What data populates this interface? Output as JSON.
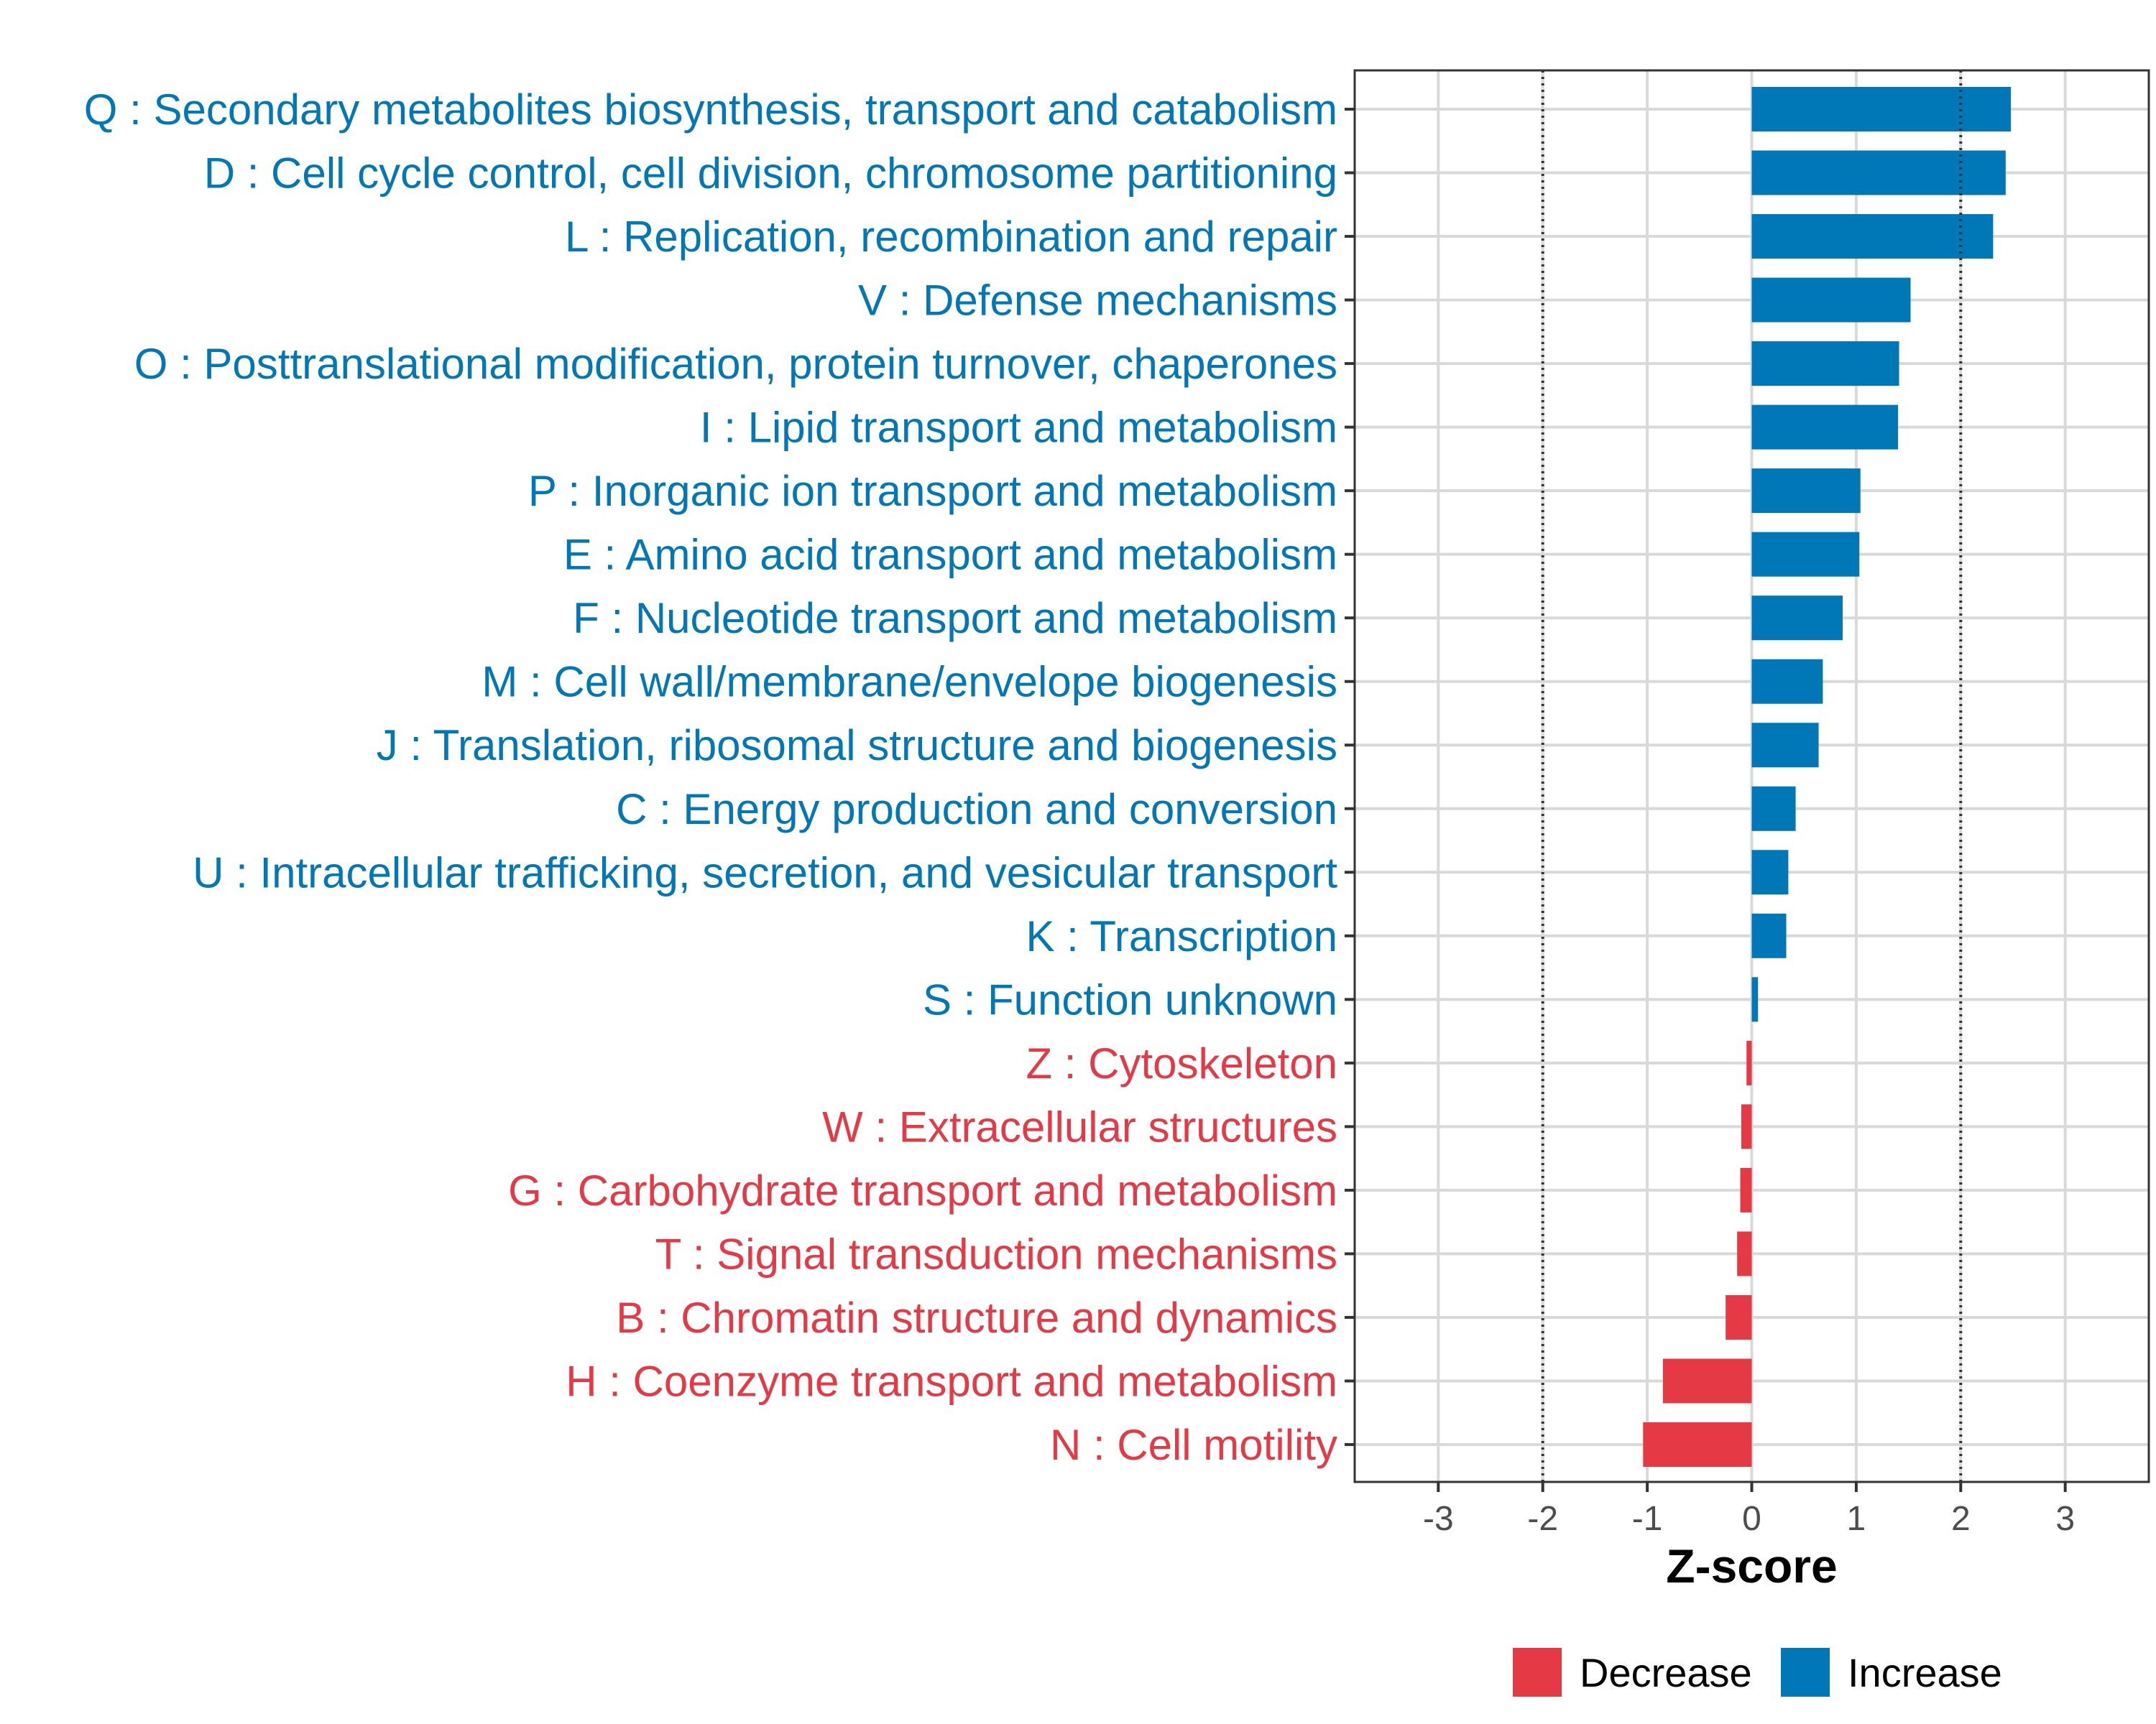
{
  "chart_data": {
    "type": "bar",
    "orientation": "horizontal",
    "title": "",
    "xlabel": "Z-score",
    "ylabel": "",
    "xlim": [
      -3.8,
      3.8
    ],
    "xticks": [
      -3,
      -2,
      -1,
      0,
      1,
      2,
      3
    ],
    "threshold_lines": [
      -2,
      2
    ],
    "grid": true,
    "legend_position": "bottom",
    "legend": [
      {
        "label": "Decrease",
        "color": "#E63946"
      },
      {
        "label": "Increase",
        "color": "#0077B6"
      }
    ],
    "categories": [
      {
        "label": "Q : Secondary metabolites biosynthesis, transport and catabolism",
        "value": 2.48,
        "group": "Increase"
      },
      {
        "label": "D : Cell cycle control, cell division, chromosome partitioning",
        "value": 2.43,
        "group": "Increase"
      },
      {
        "label": "L : Replication, recombination and repair",
        "value": 2.31,
        "group": "Increase"
      },
      {
        "label": "V : Defense mechanisms",
        "value": 1.52,
        "group": "Increase"
      },
      {
        "label": "O : Posttranslational modification, protein turnover, chaperones",
        "value": 1.41,
        "group": "Increase"
      },
      {
        "label": "I : Lipid transport and metabolism",
        "value": 1.4,
        "group": "Increase"
      },
      {
        "label": "P : Inorganic ion transport and metabolism",
        "value": 1.04,
        "group": "Increase"
      },
      {
        "label": "E : Amino acid transport and metabolism",
        "value": 1.03,
        "group": "Increase"
      },
      {
        "label": "F : Nucleotide transport and metabolism",
        "value": 0.87,
        "group": "Increase"
      },
      {
        "label": "M : Cell wall/membrane/envelope biogenesis",
        "value": 0.68,
        "group": "Increase"
      },
      {
        "label": "J : Translation, ribosomal structure and biogenesis",
        "value": 0.64,
        "group": "Increase"
      },
      {
        "label": "C : Energy production and conversion",
        "value": 0.42,
        "group": "Increase"
      },
      {
        "label": "U : Intracellular trafficking, secretion, and vesicular transport",
        "value": 0.35,
        "group": "Increase"
      },
      {
        "label": "K : Transcription",
        "value": 0.33,
        "group": "Increase"
      },
      {
        "label": "S : Function unknown",
        "value": 0.06,
        "group": "Increase"
      },
      {
        "label": "Z : Cytoskeleton",
        "value": -0.05,
        "group": "Decrease"
      },
      {
        "label": "W : Extracellular structures",
        "value": -0.1,
        "group": "Decrease"
      },
      {
        "label": "G : Carbohydrate transport and metabolism",
        "value": -0.11,
        "group": "Decrease"
      },
      {
        "label": "T : Signal transduction mechanisms",
        "value": -0.14,
        "group": "Decrease"
      },
      {
        "label": "B : Chromatin structure and dynamics",
        "value": -0.25,
        "group": "Decrease"
      },
      {
        "label": "H : Coenzyme transport and metabolism",
        "value": -0.85,
        "group": "Decrease"
      },
      {
        "label": "N : Cell motility",
        "value": -1.04,
        "group": "Decrease"
      }
    ]
  }
}
